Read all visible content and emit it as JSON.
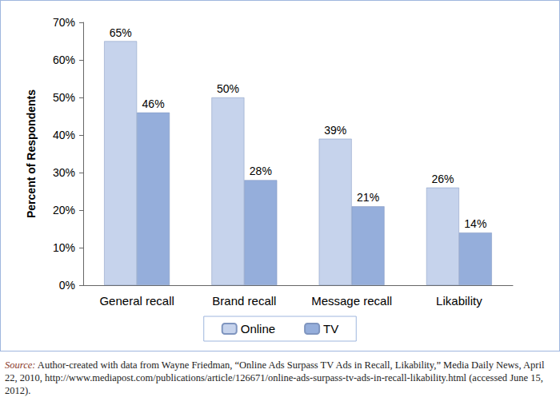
{
  "chart_data": {
    "type": "bar",
    "categories": [
      "General recall",
      "Brand recall",
      "Message recall",
      "Likability"
    ],
    "series": [
      {
        "name": "Online",
        "color": "#c6d3ec",
        "values": [
          65,
          50,
          39,
          26
        ],
        "value_labels": [
          "65%",
          "50%",
          "39%",
          "26%"
        ]
      },
      {
        "name": "TV",
        "color": "#95aedb",
        "values": [
          46,
          28,
          21,
          14
        ],
        "value_labels": [
          "46%",
          "28%",
          "21%",
          "14%"
        ]
      }
    ],
    "y_label": "Percent of Respondents",
    "ylim": [
      0,
      70
    ],
    "yticks": [
      {
        "value": 0,
        "label": "0%"
      },
      {
        "value": 10,
        "label": "10%"
      },
      {
        "value": 20,
        "label": "20%"
      },
      {
        "value": 30,
        "label": "30%"
      },
      {
        "value": 40,
        "label": "40%"
      },
      {
        "value": 50,
        "label": "50%"
      },
      {
        "value": 60,
        "label": "60%"
      },
      {
        "value": 70,
        "label": "70%"
      }
    ],
    "grid": false,
    "legend": "bottom",
    "data_labels": true,
    "source": "Source: Author-created with data from Wayne Friedman, “Online Ads Surpass TV Ads in Recall, Likability,” Media Daily News, April 22, 2010, http://www.mediapost.com/publications/article/126671/online-ads-surpass-tv-ads-in-recall-likability.html (accessed June 15, 2012)."
  }
}
